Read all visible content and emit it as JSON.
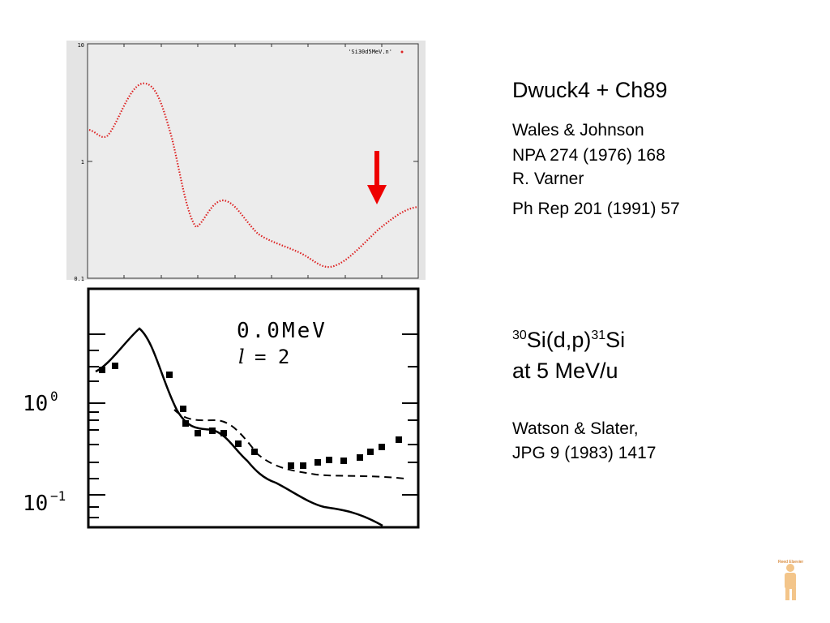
{
  "top_plot": {
    "ytick_labels": [
      "10",
      "1",
      "0.1"
    ],
    "legend": "'Si30d5MeV.n'"
  },
  "bottom_plot": {
    "energy": "0.0MeV",
    "l_label": "l",
    "l_value": "= 2",
    "ytick_0_base": "10",
    "ytick_0_exp": "0",
    "ytick_1_base": "10",
    "ytick_1_exp": "−1"
  },
  "header": {
    "title": "Dwuck4 + Ch89"
  },
  "references_1": [
    "Wales & Johnson",
    "NPA 274 (1976) 168",
    "R. Varner"
  ],
  "references_2": "Ph Rep 201 (1991) 57",
  "reaction": {
    "mass_a": "30",
    "target": "Si(d,p)",
    "mass_b": "31",
    "product": "Si",
    "energy": "at 5 MeV/u"
  },
  "references_3": [
    "Watson & Slater,",
    "JPG 9 (1983) 1417"
  ],
  "logo": "Reed Elsevier"
}
